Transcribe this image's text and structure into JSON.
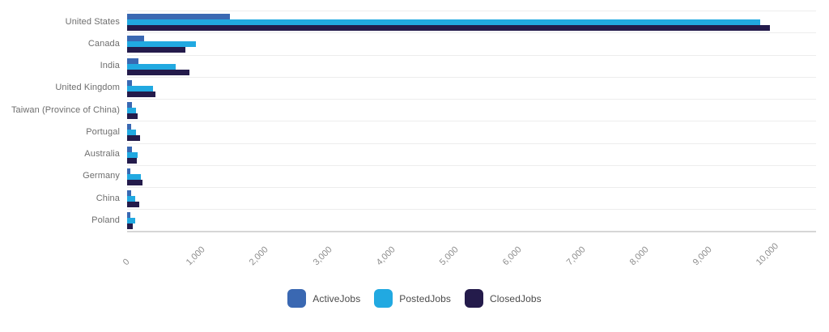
{
  "chart_data": {
    "type": "bar",
    "orientation": "horizontal",
    "title": "",
    "xlabel": "",
    "ylabel": "",
    "grid": "horizontal row separators only, no vertical gridlines",
    "legend_position": "bottom-center",
    "categories": [
      "United States",
      "Canada",
      "India",
      "United Kingdom",
      "Taiwan (Province of China)",
      "Portugal",
      "Australia",
      "Germany",
      "China",
      "Poland"
    ],
    "series": [
      {
        "name": "ActiveJobs",
        "color": "#3A68B2",
        "values": [
          1620,
          270,
          180,
          75,
          75,
          65,
          75,
          50,
          65,
          50
        ]
      },
      {
        "name": "PostedJobs",
        "color": "#21A9E1",
        "values": [
          10000,
          1080,
          770,
          410,
          140,
          140,
          165,
          215,
          130,
          130
        ]
      },
      {
        "name": "ClosedJobs",
        "color": "#241B4B",
        "values": [
          10150,
          925,
          990,
          450,
          165,
          205,
          155,
          245,
          190,
          90
        ]
      }
    ],
    "x_axis": {
      "tick_labels": [
        "0",
        "1,000",
        "2,000",
        "3,000",
        "4,000",
        "5,000",
        "6,000",
        "7,000",
        "8,000",
        "9,000",
        "10,000"
      ],
      "tick_values": [
        0,
        1000,
        2000,
        3000,
        4000,
        5000,
        6000,
        7000,
        8000,
        9000,
        10000
      ],
      "axis_max": 10880
    }
  }
}
